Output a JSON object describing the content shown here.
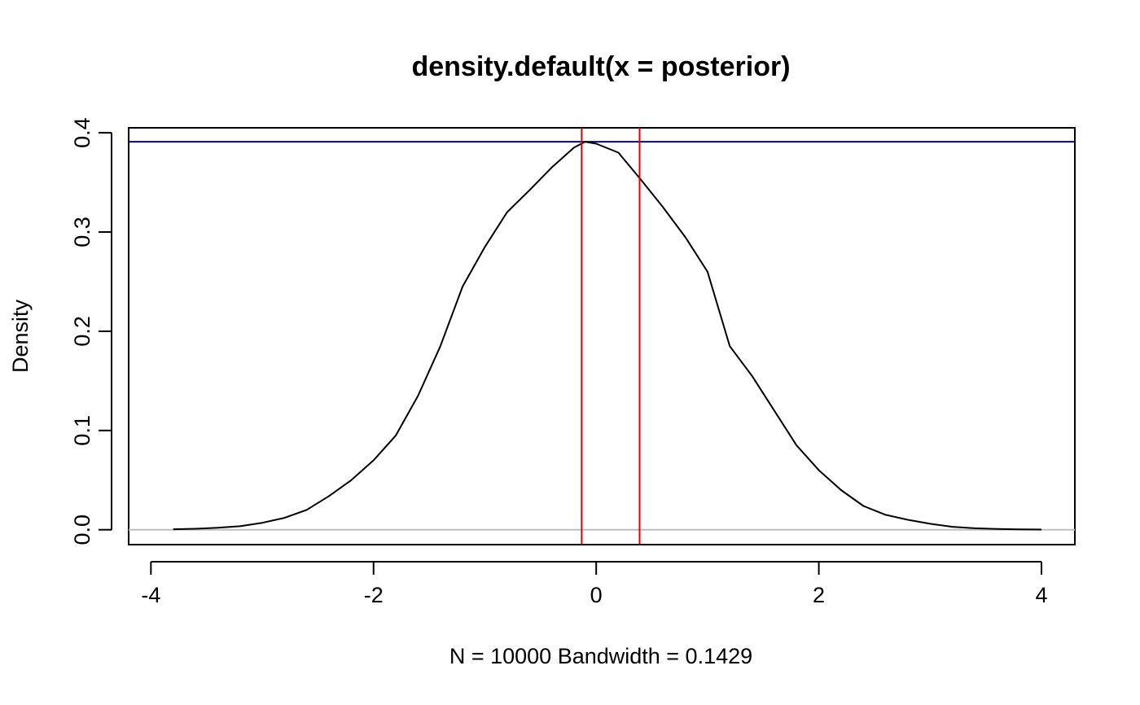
{
  "chart_data": {
    "type": "line",
    "title": "density.default(x = posterior)",
    "xlabel": "N = 10000   Bandwidth = 0.1429",
    "ylabel": "Density",
    "xlim": [
      -4.2,
      4.3
    ],
    "ylim": [
      -0.015,
      0.405
    ],
    "xticks": [
      -4,
      -2,
      0,
      2,
      4
    ],
    "xtick_labels": [
      "-4",
      "-2",
      "0",
      "2",
      "4"
    ],
    "yticks": [
      0.0,
      0.1,
      0.2,
      0.3,
      0.4
    ],
    "ytick_labels": [
      "0.0",
      "0.1",
      "0.2",
      "0.3",
      "0.4"
    ],
    "grid": false,
    "series": [
      {
        "color": "#000000",
        "x": [
          -3.8,
          -3.6,
          -3.4,
          -3.2,
          -3.0,
          -2.8,
          -2.6,
          -2.4,
          -2.2,
          -2.0,
          -1.8,
          -1.6,
          -1.4,
          -1.2,
          -1.0,
          -0.8,
          -0.6,
          -0.4,
          -0.2,
          -0.1,
          0.0,
          0.2,
          0.4,
          0.6,
          0.8,
          1.0,
          1.2,
          1.4,
          1.6,
          1.8,
          2.0,
          2.2,
          2.4,
          2.6,
          2.8,
          3.0,
          3.2,
          3.4,
          3.6,
          3.8,
          4.0
        ],
        "y": [
          0.0005,
          0.001,
          0.002,
          0.0035,
          0.007,
          0.012,
          0.02,
          0.034,
          0.05,
          0.07,
          0.095,
          0.135,
          0.185,
          0.245,
          0.285,
          0.32,
          0.342,
          0.365,
          0.385,
          0.391,
          0.389,
          0.38,
          0.353,
          0.325,
          0.295,
          0.26,
          0.185,
          0.155,
          0.12,
          0.085,
          0.06,
          0.04,
          0.024,
          0.015,
          0.01,
          0.006,
          0.003,
          0.0015,
          0.0008,
          0.0004,
          0.0002
        ]
      }
    ],
    "hlines": [
      {
        "y": 0.391,
        "color": "#0000aa"
      },
      {
        "y": 0.0,
        "color": "#bebebe"
      }
    ],
    "vlines": [
      {
        "x": -0.13,
        "color": "#dd0000"
      },
      {
        "x": 0.39,
        "color": "#dd0000"
      }
    ]
  }
}
